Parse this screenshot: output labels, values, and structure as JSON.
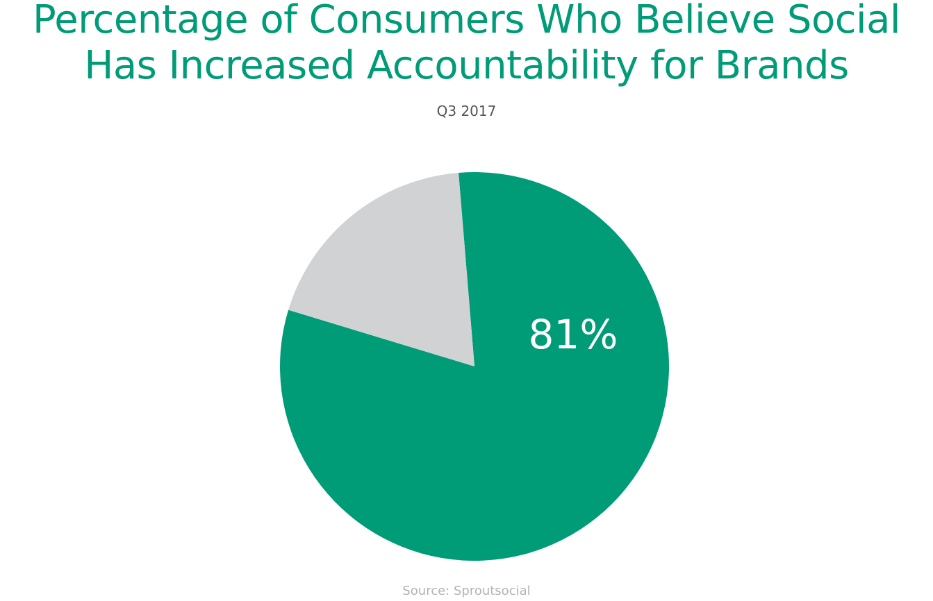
{
  "chart_data": {
    "type": "pie",
    "title_lines": [
      "Percentage of Consumers Who Believe Social",
      "Has Increased Accountability for Brands"
    ],
    "subtitle": "Q3 2017",
    "slices": [
      {
        "value": 81,
        "label": "81%",
        "color": "#009B77"
      },
      {
        "value": 19,
        "label": "",
        "color": "#D0D2D3"
      }
    ],
    "source": "Source: Sproutsocial"
  }
}
